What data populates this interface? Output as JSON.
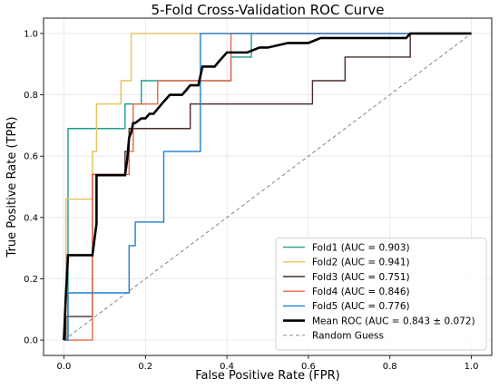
{
  "chart_data": {
    "type": "line",
    "title": "5-Fold Cross-Validation ROC Curve",
    "xlabel": "False Positive Rate (FPR)",
    "ylabel": "True Positive Rate (TPR)",
    "xlim": [
      -0.05,
      1.05
    ],
    "ylim": [
      -0.05,
      1.05
    ],
    "xticks": [
      0.0,
      0.2,
      0.4,
      0.6,
      0.8,
      1.0
    ],
    "yticks": [
      0.0,
      0.2,
      0.4,
      0.6,
      0.8,
      1.0
    ],
    "xtick_labels": [
      "0.0",
      "0.2",
      "0.4",
      "0.6",
      "0.8",
      "1.0"
    ],
    "ytick_labels": [
      "0.0",
      "0.2",
      "0.4",
      "0.6",
      "0.8",
      "1.0"
    ],
    "grid": true,
    "legend_position": "lower-right",
    "series": [
      {
        "name": "Fold1 (AUC = 0.903)",
        "color": "#1a9e8f",
        "x": [
          0,
          0.01,
          0.01,
          0.15,
          0.15,
          0.19,
          0.19,
          0.39,
          0.39,
          0.41,
          0.41,
          0.46,
          0.46,
          1.0
        ],
        "y": [
          0,
          0,
          0.69,
          0.69,
          0.77,
          0.77,
          0.846,
          0.846,
          0.846,
          0.846,
          0.923,
          0.923,
          1.0,
          1.0
        ]
      },
      {
        "name": "Fold2 (AUC = 0.941)",
        "color": "#e8c05a",
        "x": [
          0,
          0.005,
          0.005,
          0.07,
          0.07,
          0.08,
          0.08,
          0.14,
          0.14,
          0.165,
          0.165,
          1.0
        ],
        "y": [
          0,
          0,
          0.46,
          0.46,
          0.615,
          0.615,
          0.77,
          0.77,
          0.846,
          0.846,
          1.0,
          1.0
        ]
      },
      {
        "name": "Fold3 (AUC = 0.751)",
        "color": "#4a2c2a",
        "x": [
          0,
          0.005,
          0.005,
          0.07,
          0.07,
          0.15,
          0.15,
          0.16,
          0.16,
          0.31,
          0.31,
          0.32,
          0.32,
          0.61,
          0.61,
          0.69,
          0.69,
          0.84,
          0.84,
          0.85,
          0.85,
          1.0
        ],
        "y": [
          0,
          0,
          0.077,
          0.077,
          0.54,
          0.54,
          0.615,
          0.615,
          0.69,
          0.69,
          0.77,
          0.77,
          0.77,
          0.77,
          0.846,
          0.846,
          0.923,
          0.923,
          0.923,
          0.923,
          1.0,
          1.0
        ]
      },
      {
        "name": "Fold4 (AUC = 0.846)",
        "color": "#e8684a",
        "x": [
          0,
          0.005,
          0.005,
          0.07,
          0.07,
          0.16,
          0.16,
          0.17,
          0.17,
          0.2,
          0.2,
          0.23,
          0.23,
          0.4,
          0.4,
          0.41,
          0.41,
          1.0
        ],
        "y": [
          0,
          0,
          0,
          0,
          0.54,
          0.54,
          0.615,
          0.615,
          0.77,
          0.77,
          0.77,
          0.77,
          0.846,
          0.846,
          0.846,
          0.846,
          1.0,
          1.0
        ]
      },
      {
        "name": "Fold5 (AUC = 0.776)",
        "color": "#1f7fd4",
        "x": [
          0,
          0.01,
          0.01,
          0.16,
          0.16,
          0.175,
          0.175,
          0.245,
          0.245,
          0.325,
          0.325,
          0.335,
          0.335,
          1.0
        ],
        "y": [
          0,
          0,
          0.154,
          0.154,
          0.308,
          0.308,
          0.385,
          0.385,
          0.615,
          0.615,
          0.615,
          0.615,
          1.0,
          1.0
        ]
      },
      {
        "name": "Mean ROC (AUC = 0.843 ± 0.072)",
        "color": "#000000",
        "width": 2.6,
        "x": [
          0,
          0.005,
          0.01,
          0.05,
          0.07,
          0.08,
          0.08,
          0.13,
          0.15,
          0.155,
          0.16,
          0.165,
          0.17,
          0.175,
          0.19,
          0.2,
          0.21,
          0.22,
          0.23,
          0.24,
          0.25,
          0.26,
          0.29,
          0.3,
          0.31,
          0.33,
          0.34,
          0.35,
          0.37,
          0.38,
          0.39,
          0.4,
          0.42,
          0.45,
          0.48,
          0.5,
          0.55,
          0.6,
          0.63,
          0.69,
          0.7,
          0.75,
          0.84,
          0.85,
          1.0
        ],
        "y": [
          0,
          0.15,
          0.277,
          0.277,
          0.277,
          0.38,
          0.538,
          0.538,
          0.538,
          0.585,
          0.66,
          0.677,
          0.708,
          0.708,
          0.723,
          0.723,
          0.738,
          0.738,
          0.754,
          0.77,
          0.785,
          0.8,
          0.8,
          0.815,
          0.831,
          0.831,
          0.892,
          0.892,
          0.892,
          0.908,
          0.923,
          0.938,
          0.938,
          0.938,
          0.954,
          0.954,
          0.969,
          0.969,
          0.985,
          0.985,
          0.985,
          0.985,
          0.985,
          1.0,
          1.0
        ]
      },
      {
        "name": "Random Guess",
        "color": "#777777",
        "dashed": true,
        "x": [
          0,
          1
        ],
        "y": [
          0,
          1
        ]
      }
    ]
  }
}
